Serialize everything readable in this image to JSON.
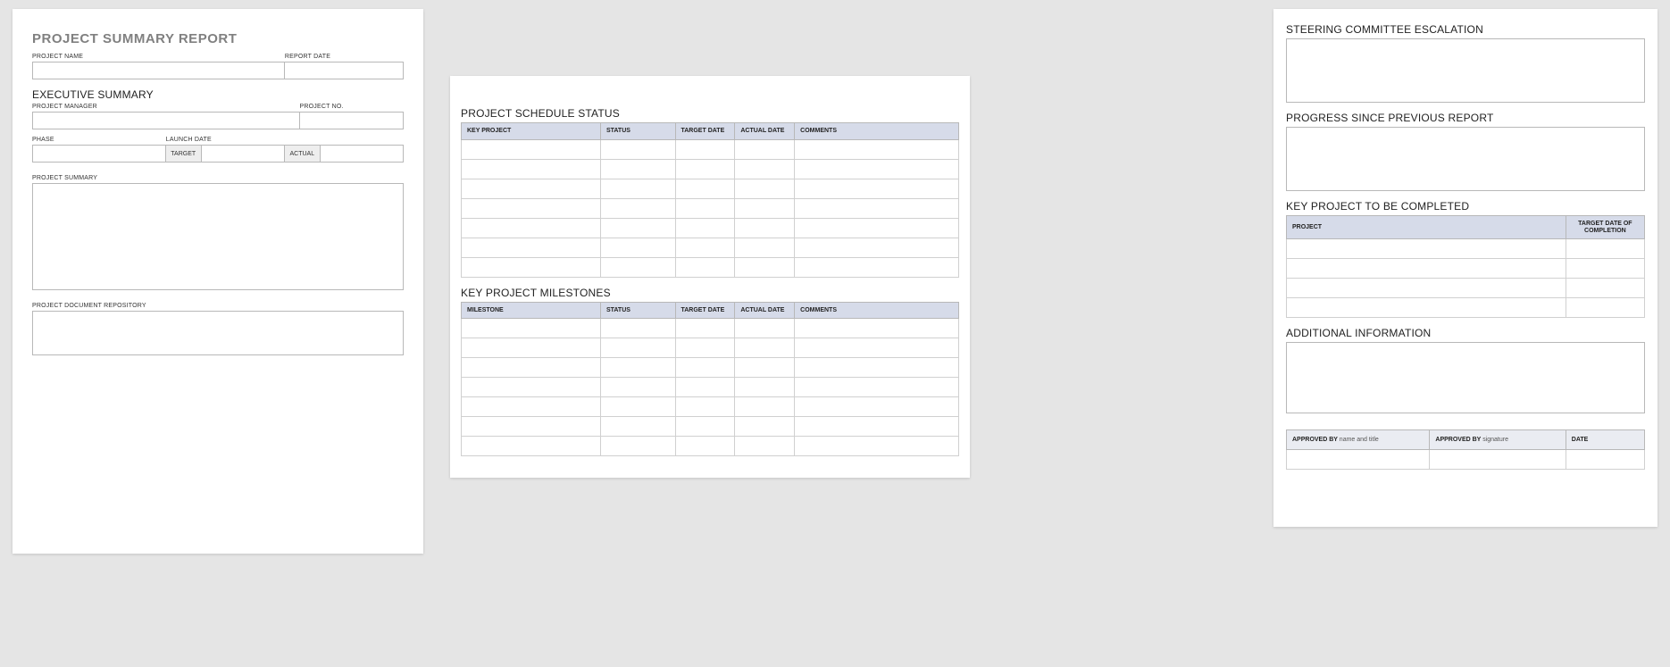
{
  "colors": {
    "page_bg": "#ffffff",
    "canvas_bg": "#e5e5e5",
    "border": "#b8b8b8",
    "header_bg": "#d6dbe9",
    "subheader_bg": "#eaecf2",
    "cell_label_bg": "#eeeeee",
    "title_color": "#808080",
    "text_color": "#222222"
  },
  "page1": {
    "title": "PROJECT SUMMARY REPORT",
    "project_name_label": "PROJECT NAME",
    "report_date_label": "REPORT DATE",
    "exec_summary_title": "EXECUTIVE SUMMARY",
    "project_manager_label": "PROJECT MANAGER",
    "project_no_label": "PROJECT NO.",
    "phase_label": "PHASE",
    "launch_date_label": "LAUNCH DATE",
    "target_label": "TARGET",
    "actual_label": "ACTUAL",
    "project_summary_label": "PROJECT SUMMARY",
    "repository_label": "PROJECT DOCUMENT REPOSITORY"
  },
  "page2": {
    "schedule_title": "PROJECT SCHEDULE STATUS",
    "schedule_columns": {
      "c1": "KEY PROJECT",
      "c2": "STATUS",
      "c3": "TARGET DATE",
      "c4": "ACTUAL DATE",
      "c5": "COMMENTS"
    },
    "schedule_row_count": 7,
    "milestones_title": "KEY PROJECT MILESTONES",
    "milestones_columns": {
      "c1": "MILESTONE",
      "c2": "STATUS",
      "c3": "TARGET DATE",
      "c4": "ACTUAL DATE",
      "c5": "COMMENTS"
    },
    "milestones_row_count": 7
  },
  "page3": {
    "steering_title": "STEERING COMMITTEE ESCALATION",
    "progress_title": "PROGRESS SINCE PREVIOUS REPORT",
    "key_project_title": "KEY PROJECT TO BE COMPLETED",
    "key_project_columns": {
      "c1": "PROJECT",
      "c2": "TARGET DATE OF COMPLETION"
    },
    "key_project_row_count": 4,
    "additional_title": "ADDITIONAL INFORMATION",
    "approval": {
      "approved_by_label": "APPROVED BY",
      "name_and_title": "name and title",
      "signature": "signature",
      "date_label": "DATE"
    }
  }
}
